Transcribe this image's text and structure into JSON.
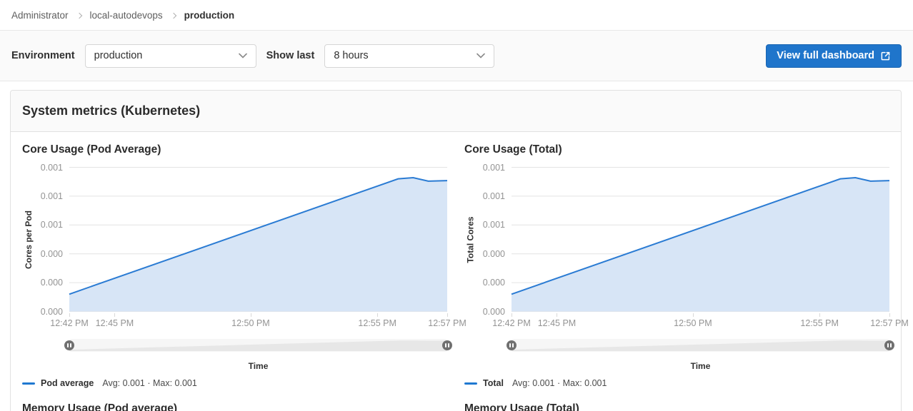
{
  "breadcrumb": {
    "items": [
      "Administrator",
      "local-autodevops",
      "production"
    ]
  },
  "filter_bar": {
    "environment_label": "Environment",
    "environment_value": "production",
    "show_last_label": "Show last",
    "show_last_value": "8 hours",
    "view_full_dashboard": "View full dashboard"
  },
  "icons": {
    "breadcrumb_separator": "chevron-right",
    "dropdown_chevron": "chevron-down",
    "button_icon": "external-link",
    "slider_handle_icon": "pause-bars"
  },
  "panel": {
    "title": "System metrics (Kubernetes)"
  },
  "next_row_titles": {
    "left": "Memory Usage (Pod average)",
    "right": "Memory Usage (Total)"
  },
  "colors": {
    "accent_blue": "#1f75cb",
    "chart_line": "#2a7bd3",
    "chart_fill": "#d7e5f6",
    "gridline": "#e4e4e4",
    "slider_silhouette": "#e7e7e7"
  },
  "chart_data": [
    {
      "type": "area",
      "title": "Core Usage (Pod Average)",
      "ylabel": "Cores per Pod",
      "xlabel": "Time",
      "legend_position": "bottom",
      "legend_name": "Pod average",
      "legend_stats": "Avg: 0.001 · Max: 0.001",
      "grid": true,
      "ylim": [
        0,
        0.00125
      ],
      "y_tick_labels_top_to_bottom": [
        "0.001",
        "0.001",
        "0.001",
        "0.000",
        "0.000",
        "0.000"
      ],
      "x_ticks": [
        {
          "label": "12:42 PM",
          "pos": 0
        },
        {
          "label": "12:45 PM",
          "pos": 0.12
        },
        {
          "label": "12:50 PM",
          "pos": 0.48
        },
        {
          "label": "12:55 PM",
          "pos": 0.815
        },
        {
          "label": "12:57 PM",
          "pos": 1
        }
      ],
      "series": [
        {
          "name": "Pod average",
          "points": [
            {
              "pos": 0,
              "value": 0.00015
            },
            {
              "pos": 0.87,
              "value": 0.00115
            },
            {
              "pos": 0.91,
              "value": 0.00116
            },
            {
              "pos": 0.95,
              "value": 0.00113
            },
            {
              "pos": 1,
              "value": 0.001135
            }
          ]
        }
      ]
    },
    {
      "type": "area",
      "title": "Core Usage (Total)",
      "ylabel": "Total Cores",
      "xlabel": "Time",
      "legend_position": "bottom",
      "legend_name": "Total",
      "legend_stats": "Avg: 0.001 · Max: 0.001",
      "grid": true,
      "ylim": [
        0,
        0.00125
      ],
      "y_tick_labels_top_to_bottom": [
        "0.001",
        "0.001",
        "0.001",
        "0.000",
        "0.000",
        "0.000"
      ],
      "x_ticks": [
        {
          "label": "12:42 PM",
          "pos": 0
        },
        {
          "label": "12:45 PM",
          "pos": 0.12
        },
        {
          "label": "12:50 PM",
          "pos": 0.48
        },
        {
          "label": "12:55 PM",
          "pos": 0.815
        },
        {
          "label": "12:57 PM",
          "pos": 1
        }
      ],
      "series": [
        {
          "name": "Total",
          "points": [
            {
              "pos": 0,
              "value": 0.00015
            },
            {
              "pos": 0.87,
              "value": 0.00115
            },
            {
              "pos": 0.91,
              "value": 0.00116
            },
            {
              "pos": 0.95,
              "value": 0.00113
            },
            {
              "pos": 1,
              "value": 0.001135
            }
          ]
        }
      ]
    }
  ]
}
